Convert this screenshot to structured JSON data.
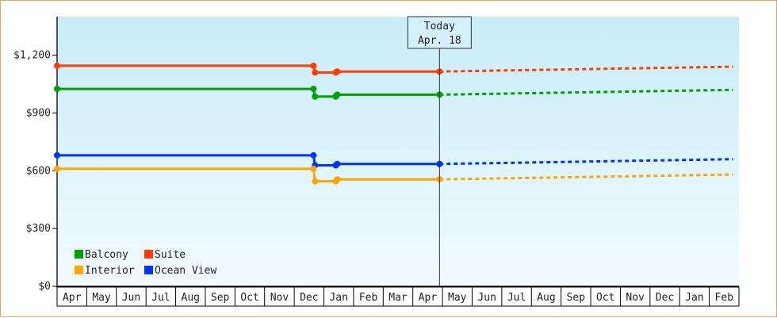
{
  "chart_data": {
    "type": "line",
    "ylim": [
      0,
      1400
    ],
    "yticks": [
      {
        "value": 0,
        "label": "$0"
      },
      {
        "value": 300,
        "label": "$300"
      },
      {
        "value": 600,
        "label": "$600"
      },
      {
        "value": 900,
        "label": "$900"
      },
      {
        "value": 1200,
        "label": "$1,200"
      }
    ],
    "x_categories": [
      "Apr",
      "May",
      "Jun",
      "Jul",
      "Aug",
      "Sep",
      "Oct",
      "Nov",
      "Dec",
      "Jan",
      "Feb",
      "Mar",
      "Apr",
      "May",
      "Jun",
      "Jul",
      "Aug",
      "Sep",
      "Oct",
      "Nov",
      "Dec",
      "Jan",
      "Feb"
    ],
    "today_marker": {
      "line1": "Today",
      "line2": "Apr. 18",
      "x": 12.9
    },
    "legend": {
      "placement": "bottom-left"
    },
    "series": [
      {
        "name": "Suite",
        "color": "#ff3d00",
        "actual": [
          [
            0,
            1145
          ],
          [
            8.65,
            1145
          ],
          [
            8.7,
            1110
          ],
          [
            9.4,
            1110
          ],
          [
            9.45,
            1115
          ],
          [
            12.9,
            1115
          ]
        ],
        "markers": [
          [
            0,
            1145
          ],
          [
            8.65,
            1145
          ],
          [
            8.7,
            1110
          ],
          [
            9.4,
            1110
          ],
          [
            9.45,
            1115
          ],
          [
            12.9,
            1115
          ]
        ],
        "forecast": [
          [
            12.9,
            1115
          ],
          [
            22.8,
            1140
          ]
        ]
      },
      {
        "name": "Balcony",
        "color": "#00a000",
        "actual": [
          [
            0,
            1025
          ],
          [
            8.65,
            1025
          ],
          [
            8.7,
            985
          ],
          [
            9.4,
            985
          ],
          [
            9.45,
            995
          ],
          [
            12.9,
            995
          ]
        ],
        "markers": [
          [
            0,
            1025
          ],
          [
            8.65,
            1025
          ],
          [
            8.7,
            985
          ],
          [
            9.4,
            985
          ],
          [
            9.45,
            995
          ],
          [
            12.9,
            995
          ]
        ],
        "forecast": [
          [
            12.9,
            995
          ],
          [
            22.8,
            1020
          ]
        ]
      },
      {
        "name": "Ocean View",
        "color": "#0033ff",
        "actual": [
          [
            0,
            680
          ],
          [
            8.65,
            680
          ],
          [
            8.7,
            628
          ],
          [
            9.4,
            628
          ],
          [
            9.45,
            635
          ],
          [
            12.9,
            635
          ]
        ],
        "markers": [
          [
            0,
            680
          ],
          [
            8.65,
            680
          ],
          [
            8.7,
            628
          ],
          [
            9.4,
            628
          ],
          [
            9.45,
            635
          ],
          [
            12.9,
            635
          ]
        ],
        "forecast": [
          [
            12.9,
            635
          ],
          [
            22.8,
            660
          ]
        ]
      },
      {
        "name": "Interior",
        "color": "#ffa500",
        "actual": [
          [
            0,
            610
          ],
          [
            8.65,
            610
          ],
          [
            8.7,
            545
          ],
          [
            9.4,
            545
          ],
          [
            9.45,
            555
          ],
          [
            12.9,
            555
          ]
        ],
        "markers": [
          [
            0,
            610
          ],
          [
            8.65,
            610
          ],
          [
            8.7,
            545
          ],
          [
            9.4,
            545
          ],
          [
            9.45,
            555
          ],
          [
            12.9,
            555
          ]
        ],
        "forecast": [
          [
            12.9,
            555
          ],
          [
            22.8,
            580
          ]
        ]
      }
    ]
  }
}
